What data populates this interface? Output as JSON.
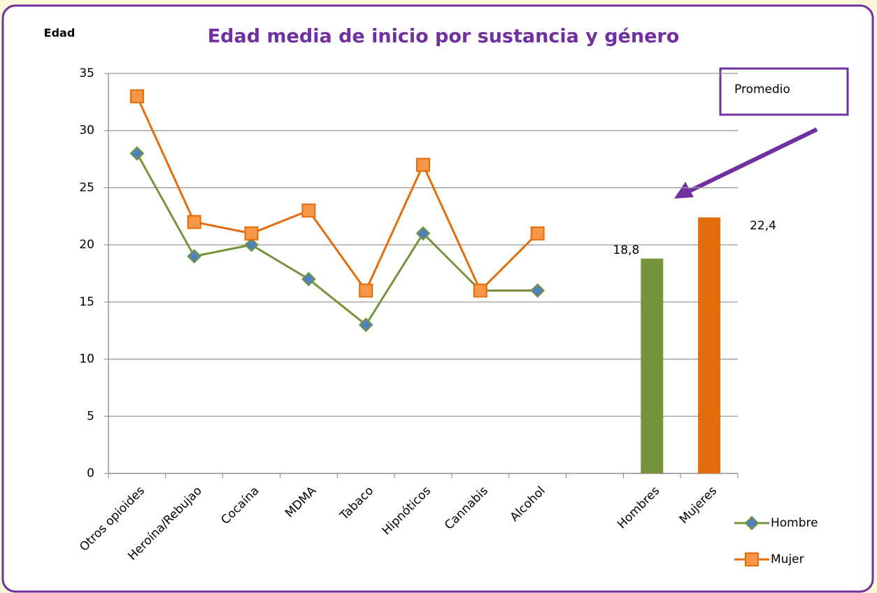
{
  "chart_data": {
    "type": "line",
    "title": "Edad media de inicio  por sustancia y género",
    "y_label": "Edad",
    "annotation": "Promedio",
    "categories": [
      "Otros opioides",
      "Heroína/Rebujao",
      "Cocaína",
      "MDMA",
      "Tabaco",
      "Hipnóticos",
      "Cannabis",
      "Alcohol",
      null,
      "Hombres",
      "Mujeres"
    ],
    "series": [
      {
        "name": "Hombre",
        "color": "#77933c",
        "marker": "diamond",
        "marker_color": "#4f81bd",
        "values": [
          28,
          19,
          20,
          17,
          13,
          21,
          16,
          16,
          null,
          null,
          null
        ]
      },
      {
        "name": "Mujer",
        "color": "#e46c0a",
        "marker": "square",
        "marker_color": "#f79646",
        "values": [
          33,
          22,
          21,
          23,
          16,
          27,
          16,
          21,
          null,
          null,
          null
        ]
      }
    ],
    "bars": {
      "values": [
        null,
        null,
        null,
        null,
        null,
        null,
        null,
        null,
        null,
        18.8,
        22.4
      ],
      "value_labels": [
        null,
        null,
        null,
        null,
        null,
        null,
        null,
        null,
        null,
        "18,8",
        "22,4"
      ],
      "colors": [
        null,
        null,
        null,
        null,
        null,
        null,
        null,
        null,
        null,
        "#77933c",
        "#e46c0a"
      ]
    },
    "ylim": [
      0,
      35
    ],
    "yticks": [
      0,
      5,
      10,
      15,
      20,
      25,
      30,
      35
    ],
    "grid": true,
    "legend": "lower right"
  }
}
